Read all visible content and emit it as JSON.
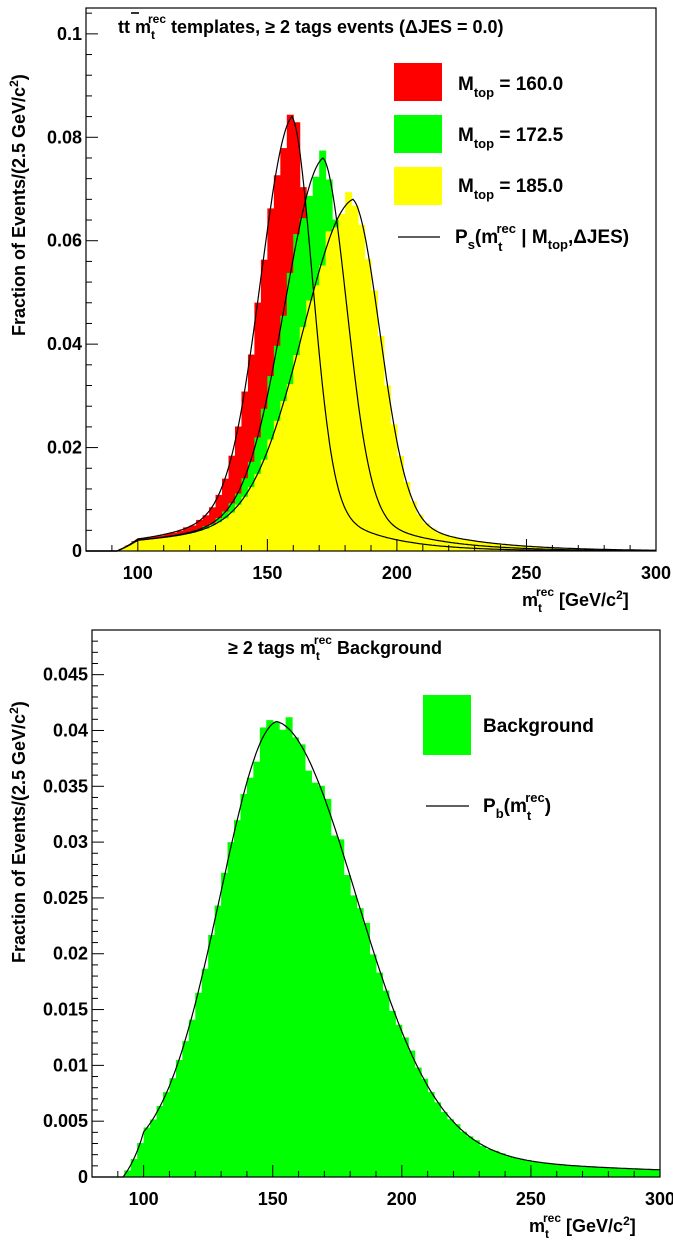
{
  "chart_data": [
    {
      "type": "histogram",
      "title": "tt̄ m_t^rec templates, ≥ 2 tags events (ΔJES = 0.0)",
      "title_parts": {
        "a": "t",
        "b": "t",
        "c": " m",
        "d": "t",
        "e": "rec",
        "f": " templates, ≥ 2 tags events (ΔJES =  0.0)"
      },
      "xlabel": {
        "m": "m",
        "sub": "t",
        "sup": "rec",
        "unit": " [GeV/c",
        "pow": "2",
        "close": "]"
      },
      "ylabel": {
        "main": "Fraction of Events/(2.5 GeV/c",
        "pow": "2",
        "close": ")"
      },
      "xlim": [
        80,
        300
      ],
      "ylim": [
        0,
        0.105
      ],
      "x_ticks": [
        "100",
        "150",
        "200",
        "250",
        "300"
      ],
      "y_ticks": [
        "0",
        "0.02",
        "0.04",
        "0.06",
        "0.08",
        "0.1"
      ],
      "legend_position": "top-right",
      "series": [
        {
          "name": "M_top = 160.0",
          "label_main": "M",
          "label_sub": "top",
          "label_val": " = 160.0",
          "color": "#ff0000",
          "peak_x": 159.5,
          "peak_y": 0.084,
          "sigma_left": 12.2,
          "sigma_right": 8.0,
          "tail": 0.18
        },
        {
          "name": "M_top = 172.5",
          "label_main": "M",
          "label_sub": "top",
          "label_val": " = 172.5",
          "color": "#00ff00",
          "peak_x": 171.5,
          "peak_y": 0.076,
          "sigma_left": 15.0,
          "sigma_right": 9.2,
          "tail": 0.17
        },
        {
          "name": "M_top = 185.0",
          "label_main": "M",
          "label_sub": "top",
          "label_val": " = 185.0",
          "color": "#ffff00",
          "peak_x": 183.0,
          "peak_y": 0.068,
          "sigma_left": 19.5,
          "sigma_right": 10.5,
          "tail": 0.16
        }
      ],
      "fit_legend": {
        "p": "P",
        "psub": "s",
        "open": "(m",
        "msub": "t",
        "msup": "rec",
        "bar": " | M",
        "tsub": "top",
        "rest": ",ΔJES)"
      },
      "fit_color": "#000000"
    },
    {
      "type": "histogram",
      "title": "≥ 2 tags m_t^rec Background",
      "title_parts": {
        "a": "≥ 2 tags m",
        "sub": "t",
        "sup": "rec",
        "b": " Background"
      },
      "xlabel": {
        "m": "m",
        "sub": "t",
        "sup": "rec",
        "unit": " [GeV/c",
        "pow": "2",
        "close": "]"
      },
      "ylabel": {
        "main": "Fraction of Events/(2.5 GeV/c",
        "pow": "2",
        "close": ")"
      },
      "xlim": [
        80,
        300
      ],
      "ylim": [
        0,
        0.049
      ],
      "x_ticks": [
        "100",
        "150",
        "200",
        "250",
        "300"
      ],
      "y_ticks": [
        "0",
        "0.005",
        "0.01",
        "0.015",
        "0.02",
        "0.025",
        "0.03",
        "0.035",
        "0.04",
        "0.045"
      ],
      "legend_position": "top-right",
      "series": [
        {
          "name": "Background",
          "color": "#00ff00",
          "peak_x": 151.5,
          "peak_y": 0.0408,
          "sigma_left": 22.0,
          "sigma_right": 31.0,
          "tail": 0.1
        }
      ],
      "fit_legend": {
        "p": "P",
        "psub": "b",
        "open": "(m",
        "msub": "t",
        "msup": "rec",
        "close": ")"
      },
      "fit_color": "#000000"
    }
  ]
}
